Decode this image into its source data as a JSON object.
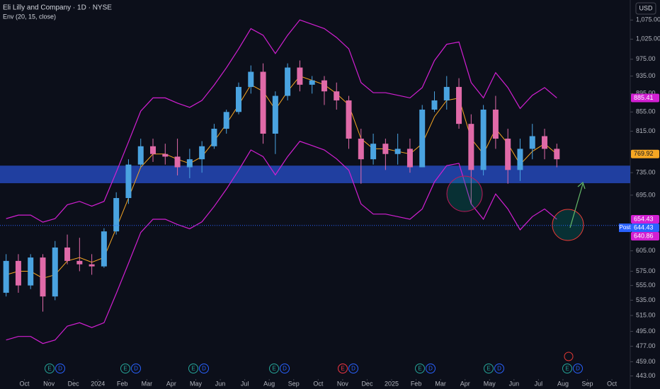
{
  "chart_data": {
    "type": "candlestick",
    "title": "Eli Lilly and Company · 1D · NYSE",
    "subtitle": "Env (20, 15, close)",
    "currency": "USD",
    "log_scale": true,
    "grid": false,
    "up_color": "#4aa3e0",
    "down_color": "#e06aa8",
    "xlim": [
      0,
      51.5
    ],
    "ylim": [
      438,
      1130
    ],
    "x": [
      0.5,
      1.5,
      2.5,
      3.5,
      4.5,
      5.5,
      6.5,
      7.5,
      8.5,
      9.5,
      10.5,
      11.5,
      12.5,
      13.5,
      14.5,
      15.5,
      16.5,
      17.5,
      18.5,
      19.5,
      20.5,
      21.5,
      22.5,
      23.5,
      24.5,
      25.5,
      26.5,
      27.5,
      28.5,
      29.5,
      30.5,
      31.5,
      32.5,
      33.5,
      34.5,
      35.5,
      36.5,
      37.5,
      38.5,
      39.5,
      40.5,
      41.5,
      42.5,
      43.5,
      44.5,
      45.5
    ],
    "ohlc": [
      [
        545,
        600,
        540,
        590
      ],
      [
        590,
        600,
        545,
        555
      ],
      [
        555,
        600,
        550,
        595
      ],
      [
        595,
        600,
        520,
        540
      ],
      [
        540,
        620,
        535,
        610
      ],
      [
        610,
        630,
        585,
        590
      ],
      [
        590,
        625,
        575,
        585
      ],
      [
        585,
        600,
        570,
        582
      ],
      [
        582,
        640,
        580,
        635
      ],
      [
        635,
        700,
        630,
        690
      ],
      [
        690,
        760,
        680,
        750
      ],
      [
        750,
        800,
        745,
        785
      ],
      [
        785,
        800,
        755,
        770
      ],
      [
        770,
        790,
        750,
        765
      ],
      [
        765,
        800,
        730,
        745
      ],
      [
        745,
        780,
        725,
        760
      ],
      [
        760,
        795,
        735,
        785
      ],
      [
        785,
        830,
        780,
        820
      ],
      [
        820,
        860,
        810,
        855
      ],
      [
        855,
        920,
        850,
        910
      ],
      [
        910,
        960,
        895,
        945
      ],
      [
        945,
        965,
        790,
        810
      ],
      [
        810,
        900,
        770,
        890
      ],
      [
        890,
        965,
        880,
        955
      ],
      [
        955,
        972,
        900,
        915
      ],
      [
        915,
        935,
        895,
        925
      ],
      [
        925,
        935,
        870,
        900
      ],
      [
        900,
        920,
        860,
        880
      ],
      [
        880,
        890,
        780,
        800
      ],
      [
        800,
        820,
        715,
        760
      ],
      [
        760,
        810,
        750,
        790
      ],
      [
        790,
        800,
        740,
        770
      ],
      [
        770,
        810,
        750,
        780
      ],
      [
        780,
        800,
        735,
        745
      ],
      [
        745,
        870,
        745,
        860
      ],
      [
        860,
        900,
        855,
        880
      ],
      [
        880,
        935,
        860,
        910
      ],
      [
        910,
        930,
        820,
        830
      ],
      [
        830,
        850,
        680,
        740
      ],
      [
        740,
        870,
        730,
        860
      ],
      [
        860,
        890,
        780,
        800
      ],
      [
        800,
        820,
        715,
        740
      ],
      [
        740,
        800,
        720,
        780
      ],
      [
        780,
        830,
        760,
        805
      ],
      [
        805,
        820,
        760,
        780
      ],
      [
        780,
        790,
        745,
        760
      ]
    ],
    "envelope": [
      {
        "role": "basis",
        "color": "#f5a623",
        "values": [
          570,
          575,
          575,
          565,
          570,
          590,
          595,
          588,
          595,
          640,
          690,
          745,
          770,
          770,
          760,
          752,
          765,
          795,
          830,
          870,
          915,
          900,
          860,
          900,
          935,
          925,
          915,
          895,
          870,
          800,
          780,
          780,
          775,
          770,
          790,
          845,
          880,
          885,
          800,
          770,
          820,
          790,
          750,
          775,
          790,
          770
        ]
      },
      {
        "role": "upper",
        "color": "#d21fd2",
        "values": [
          655.5,
          661.3,
          661.3,
          649.8,
          655.5,
          678.5,
          684.3,
          676.2,
          684.3,
          736,
          793.5,
          856.8,
          885.5,
          885.5,
          874,
          864.8,
          879.8,
          914.3,
          954.5,
          1000.5,
          1052.3,
          1035,
          989,
          1035,
          1075.3,
          1063.8,
          1052.3,
          1029.3,
          1000.5,
          920,
          897,
          897,
          891.3,
          885.5,
          908.5,
          971.8,
          1012,
          1017.8,
          920,
          885.5,
          943,
          908.5,
          862.5,
          891.3,
          908.5,
          885.5
        ]
      },
      {
        "role": "lower",
        "color": "#d21fd2",
        "values": [
          484.5,
          488.8,
          488.8,
          480.3,
          484.5,
          501.5,
          505.8,
          499.8,
          505.8,
          544,
          586.5,
          633.3,
          654.5,
          654.5,
          646,
          639.2,
          650.3,
          675.8,
          705.5,
          739.5,
          777.8,
          765,
          731,
          765,
          794.8,
          786.3,
          777.8,
          760.8,
          739.5,
          680,
          663,
          663,
          658.8,
          654.5,
          671.5,
          718.3,
          748,
          752.3,
          680,
          654.5,
          697,
          671.5,
          637.5,
          658.8,
          671.5,
          654.5
        ]
      }
    ],
    "zone": [
      716,
      748
    ],
    "yticks": [
      {
        "value": 1075,
        "label": "1,075.00"
      },
      {
        "value": 1025,
        "label": "1,025.00"
      },
      {
        "value": 975,
        "label": "975.00"
      },
      {
        "value": 935,
        "label": "935.00"
      },
      {
        "value": 895,
        "label": "895.00"
      },
      {
        "value": 855,
        "label": "855.00"
      },
      {
        "value": 815,
        "label": "815.00"
      },
      {
        "value": 735,
        "label": "735.00"
      },
      {
        "value": 695,
        "label": "695.00"
      },
      {
        "value": 605,
        "label": "605.00"
      },
      {
        "value": 575,
        "label": "575.00"
      },
      {
        "value": 555,
        "label": "555.00"
      },
      {
        "value": 535,
        "label": "535.00"
      },
      {
        "value": 515,
        "label": "515.00"
      },
      {
        "value": 495,
        "label": "495.00"
      },
      {
        "value": 477,
        "label": "477.00"
      },
      {
        "value": 459,
        "label": "459.00"
      },
      {
        "value": 443,
        "label": "443.00"
      }
    ],
    "xticks": [
      {
        "value": 2,
        "label": "Oct"
      },
      {
        "value": 4,
        "label": "Nov"
      },
      {
        "value": 6,
        "label": "Dec"
      },
      {
        "value": 8,
        "label": "2024"
      },
      {
        "value": 10,
        "label": "Feb"
      },
      {
        "value": 12,
        "label": "Mar"
      },
      {
        "value": 14,
        "label": "Apr"
      },
      {
        "value": 16,
        "label": "May"
      },
      {
        "value": 18,
        "label": "Jun"
      },
      {
        "value": 20,
        "label": "Jul"
      },
      {
        "value": 22,
        "label": "Aug"
      },
      {
        "value": 24,
        "label": "Sep"
      },
      {
        "value": 26,
        "label": "Oct"
      },
      {
        "value": 28,
        "label": "Nov"
      },
      {
        "value": 30,
        "label": "Dec"
      },
      {
        "value": 32,
        "label": "2025"
      },
      {
        "value": 34,
        "label": "Feb"
      },
      {
        "value": 36,
        "label": "Mar"
      },
      {
        "value": 38,
        "label": "Apr"
      },
      {
        "value": 40,
        "label": "May"
      },
      {
        "value": 42,
        "label": "Jun"
      },
      {
        "value": 44,
        "label": "Jul"
      },
      {
        "value": 46,
        "label": "Aug"
      },
      {
        "value": 48,
        "label": "Sep"
      },
      {
        "value": 50,
        "label": "Oct"
      }
    ],
    "price_labels": [
      {
        "value": 885.41,
        "label": "885.41",
        "color": "#d21fd2"
      },
      {
        "value": 769.92,
        "label": "769.92",
        "color": "#f5a623"
      },
      {
        "value": 654.43,
        "label": "654.43",
        "color": "#d21fd2"
      },
      {
        "value": 644.43,
        "label": "644.43",
        "color": "#2962ff",
        "tag": "Post"
      },
      {
        "value": 640.86,
        "label": "640.86",
        "color": "#d21fd2"
      }
    ],
    "events": [
      {
        "marks": [
          "E",
          "D"
        ],
        "color": "#26a69a"
      },
      {
        "marks": [
          "E",
          "D"
        ],
        "color": "#26a69a"
      },
      {
        "marks": [
          "E",
          "D"
        ],
        "color": "#26a69a"
      },
      {
        "marks": [
          "E",
          "D"
        ],
        "color": "#26a69a"
      },
      {
        "marks": [
          "E",
          "D"
        ],
        "color": "#f23645"
      },
      {
        "marks": [
          "E",
          "D"
        ],
        "color": "#26a69a"
      },
      {
        "marks": [
          "E",
          "D"
        ],
        "color": "#26a69a"
      },
      {
        "marks": [
          "E",
          "D"
        ],
        "color": "#26a69a"
      }
    ]
  }
}
